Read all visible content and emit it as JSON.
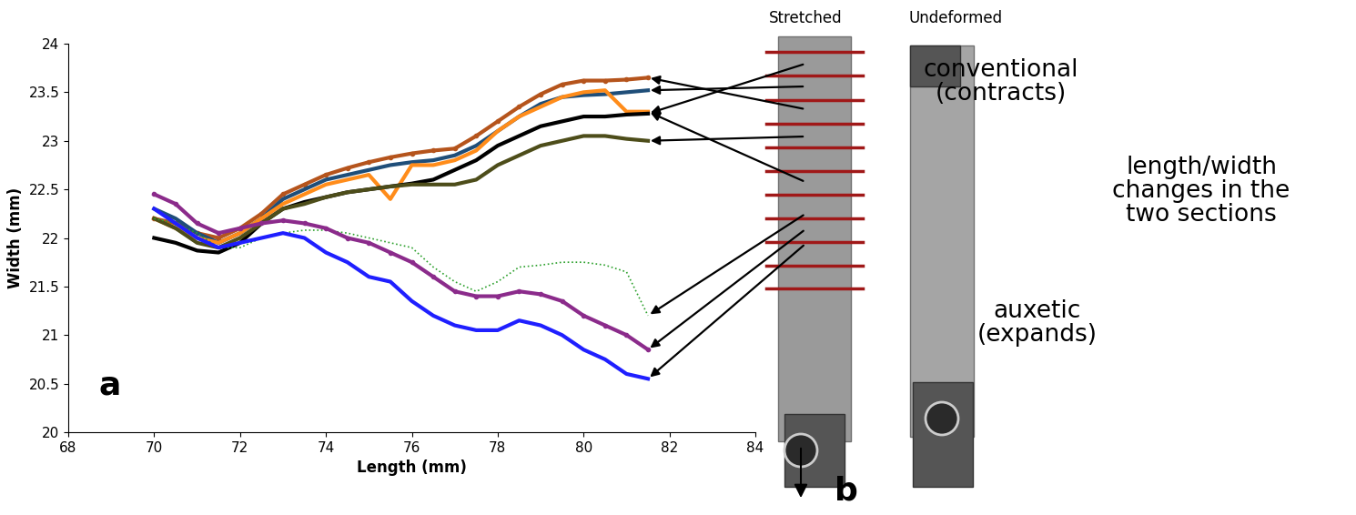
{
  "chart_data": {
    "type": "line",
    "xlabel": "Length (mm)",
    "ylabel": "Width (mm)",
    "annotations": [
      "a"
    ],
    "x": [
      70,
      70.5,
      71,
      71.5,
      72,
      72.5,
      73,
      73.5,
      74,
      74.5,
      75,
      75.5,
      76,
      76.5,
      77,
      77.5,
      78,
      78.5,
      79,
      79.5,
      80,
      80.5,
      81,
      81.5
    ],
    "series": [
      {
        "color": "#b5541c",
        "line_style": "solid",
        "marker": "dot",
        "values": [
          22.2,
          22.15,
          22.05,
          22.0,
          22.1,
          22.25,
          22.45,
          22.55,
          22.65,
          22.72,
          22.78,
          22.83,
          22.87,
          22.9,
          22.92,
          23.05,
          23.2,
          23.35,
          23.48,
          23.58,
          23.62,
          23.62,
          23.63,
          23.65
        ]
      },
      {
        "color": "#1f4e79",
        "line_style": "solid",
        "marker": "none",
        "values": [
          22.3,
          22.2,
          22.05,
          21.95,
          22.05,
          22.2,
          22.4,
          22.5,
          22.6,
          22.65,
          22.7,
          22.75,
          22.78,
          22.8,
          22.85,
          22.95,
          23.1,
          23.25,
          23.38,
          23.45,
          23.47,
          23.48,
          23.5,
          23.52
        ]
      },
      {
        "color": "#ff8c1a",
        "line_style": "solid",
        "marker": "none",
        "values": [
          22.2,
          22.1,
          22.0,
          21.95,
          22.05,
          22.2,
          22.35,
          22.45,
          22.55,
          22.6,
          22.65,
          22.4,
          22.75,
          22.75,
          22.8,
          22.9,
          23.1,
          23.25,
          23.35,
          23.45,
          23.5,
          23.52,
          23.3,
          23.3
        ]
      },
      {
        "color": "#000000",
        "line_style": "solid",
        "marker": "none",
        "values": [
          22.0,
          21.95,
          21.87,
          21.85,
          21.95,
          22.15,
          22.3,
          22.37,
          22.42,
          22.47,
          22.5,
          22.53,
          22.56,
          22.6,
          22.7,
          22.8,
          22.95,
          23.05,
          23.15,
          23.2,
          23.25,
          23.25,
          23.27,
          23.28
        ]
      },
      {
        "color": "#4d4d1a",
        "line_style": "solid",
        "marker": "none",
        "values": [
          22.2,
          22.1,
          21.95,
          21.9,
          22.0,
          22.15,
          22.3,
          22.35,
          22.42,
          22.47,
          22.5,
          22.53,
          22.55,
          22.55,
          22.55,
          22.6,
          22.75,
          22.85,
          22.95,
          23.0,
          23.05,
          23.05,
          23.02,
          23.0
        ]
      },
      {
        "color": "#2ca02c",
        "line_style": "dotted",
        "marker": "none",
        "values": [
          22.2,
          22.15,
          22.05,
          21.9,
          21.9,
          22.0,
          22.05,
          22.08,
          22.08,
          22.05,
          22.0,
          21.95,
          21.9,
          21.7,
          21.55,
          21.45,
          21.55,
          21.7,
          21.72,
          21.75,
          21.75,
          21.72,
          21.65,
          21.2
        ]
      },
      {
        "color": "#8b2b8b",
        "line_style": "solid",
        "marker": "dot",
        "values": [
          22.45,
          22.35,
          22.15,
          22.05,
          22.1,
          22.15,
          22.18,
          22.15,
          22.1,
          22.0,
          21.95,
          21.85,
          21.75,
          21.6,
          21.45,
          21.4,
          21.4,
          21.45,
          21.42,
          21.35,
          21.2,
          21.1,
          21.0,
          20.85
        ]
      },
      {
        "color": "#1f1fff",
        "line_style": "solid",
        "marker": "none",
        "values": [
          22.3,
          22.15,
          22.0,
          21.9,
          21.95,
          22.0,
          22.05,
          22.0,
          21.85,
          21.75,
          21.6,
          21.55,
          21.35,
          21.2,
          21.1,
          21.05,
          21.05,
          21.15,
          21.1,
          21.0,
          20.85,
          20.75,
          20.6,
          20.55
        ]
      }
    ],
    "xlim": [
      68,
      84
    ],
    "xticks": [
      68,
      70,
      72,
      74,
      76,
      78,
      80,
      82,
      84
    ],
    "ylim": [
      20,
      24
    ],
    "yticks": [
      20,
      20.5,
      21,
      21.5,
      22,
      22.5,
      23,
      23.5,
      24
    ],
    "grid": false
  },
  "panel_b": {
    "panel_label": "b",
    "photo_labels": [
      "Stretched",
      "Undeformed"
    ],
    "notes": [
      "conventional\n(contracts)",
      "length/width\nchanges in the\ntwo sections",
      "auxetic\n(expands)"
    ]
  }
}
